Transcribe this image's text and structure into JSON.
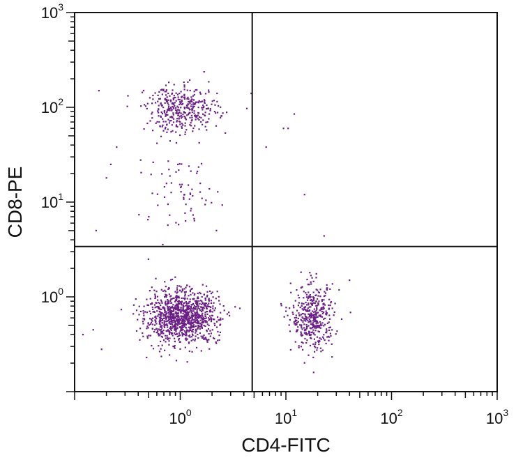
{
  "chart_data": {
    "type": "scatter",
    "title": "",
    "xlabel": "CD4-FITC",
    "ylabel": "CD8-PE",
    "x_scale": "log",
    "y_scale": "log",
    "xlim": [
      0.1,
      1000
    ],
    "ylim": [
      0.1,
      1000
    ],
    "x_ticks": [
      {
        "value": 1,
        "base": "10",
        "exp": "0"
      },
      {
        "value": 10,
        "base": "10",
        "exp": "1"
      },
      {
        "value": 100,
        "base": "10",
        "exp": "2"
      },
      {
        "value": 1000,
        "base": "10",
        "exp": "3"
      }
    ],
    "y_ticks": [
      {
        "value": 1,
        "base": "10",
        "exp": "0"
      },
      {
        "value": 10,
        "base": "10",
        "exp": "1"
      },
      {
        "value": 100,
        "base": "10",
        "exp": "2"
      },
      {
        "value": 1000,
        "base": "10",
        "exp": "3"
      }
    ],
    "quadrant_gates": {
      "x": 4.8,
      "y": 3.4
    },
    "grid": false,
    "legend": "none",
    "dot_color": "#6b1f86",
    "populations": [
      {
        "region": "lower-left",
        "count": 1100,
        "center": [
          1.05,
          0.62
        ],
        "spread_log10": [
          0.17,
          0.14
        ]
      },
      {
        "region": "lower-right",
        "count": 420,
        "center": [
          18,
          0.6
        ],
        "spread_log10": [
          0.1,
          0.17
        ]
      },
      {
        "region": "upper-left",
        "count": 380,
        "center": [
          1.05,
          95
        ],
        "spread_log10": [
          0.17,
          0.12
        ]
      },
      {
        "region": "upper-left-low",
        "count": 70,
        "center": [
          1.0,
          12
        ],
        "spread_log10": [
          0.2,
          0.22
        ]
      }
    ],
    "points": [
      [
        10.5,
        60
      ],
      [
        9.5,
        60
      ],
      [
        12,
        85
      ],
      [
        6.5,
        38
      ],
      [
        15,
        12
      ],
      [
        23,
        4.4
      ],
      [
        0.17,
        150
      ],
      [
        0.22,
        25
      ],
      [
        0.2,
        18
      ],
      [
        0.16,
        5.0
      ],
      [
        0.25,
        38
      ],
      [
        4.7,
        140
      ],
      [
        0.12,
        0.4
      ],
      [
        0.15,
        0.45
      ],
      [
        0.18,
        0.28
      ],
      [
        40,
        1.5
      ],
      [
        2.5,
        9.3
      ],
      [
        2.2,
        5.0
      ],
      [
        0.5,
        2.5
      ]
    ]
  }
}
